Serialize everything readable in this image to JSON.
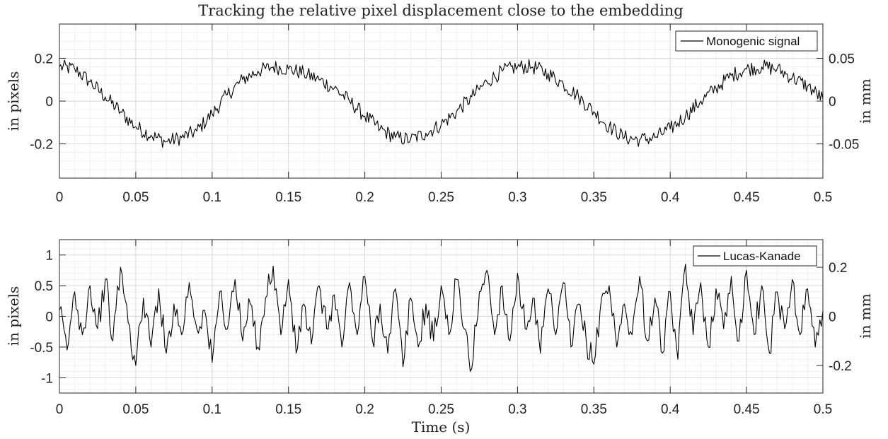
{
  "figure_title": "Tracking the relative pixel displacement close to the embedding",
  "colors": {
    "line": "#000000",
    "grid_major": "#d6d6d6",
    "grid_minor": "#ececec",
    "axes": "#262626"
  },
  "chart_data": [
    {
      "type": "line",
      "title": "Tracking the relative pixel displacement close to the embedding",
      "xlabel": "",
      "ylabel": "in pixels",
      "ylabel_right": "in mm",
      "xlim": [
        0,
        0.5
      ],
      "ylim": [
        -0.36,
        0.36
      ],
      "ylim_right": [
        -0.09,
        0.09
      ],
      "x_ticks": [
        0,
        0.05,
        0.1,
        0.15,
        0.2,
        0.25,
        0.3,
        0.35,
        0.4,
        0.45,
        0.5
      ],
      "x_tick_labels": [
        "0",
        "0.05",
        "0.1",
        "0.15",
        "0.2",
        "0.25",
        "0.3",
        "0.35",
        "0.4",
        "0.45",
        "0.5"
      ],
      "y_ticks": [
        -0.2,
        0,
        0.2
      ],
      "y_tick_labels": [
        "-0.2",
        "0",
        "0.2"
      ],
      "y_right_ticks": [
        -0.05,
        0,
        0.05
      ],
      "y_right_tick_labels": [
        "-0.05",
        "0",
        "0.05"
      ],
      "grid": true,
      "minor_grid": true,
      "legend_position": "top-right",
      "series": [
        {
          "name": "Monogenic signal",
          "sampling": "approx. sinusoid ~6.4 Hz with noise; key points (x, y)",
          "x": [
            0,
            0.01,
            0.02,
            0.03,
            0.04,
            0.05,
            0.06,
            0.07,
            0.08,
            0.09,
            0.1,
            0.11,
            0.12,
            0.13,
            0.14,
            0.15,
            0.16,
            0.17,
            0.18,
            0.19,
            0.2,
            0.21,
            0.22,
            0.23,
            0.24,
            0.25,
            0.26,
            0.27,
            0.28,
            0.29,
            0.3,
            0.31,
            0.32,
            0.33,
            0.34,
            0.35,
            0.36,
            0.37,
            0.38,
            0.39,
            0.4,
            0.41,
            0.42,
            0.43,
            0.44,
            0.45,
            0.46,
            0.47,
            0.48,
            0.49,
            0.5
          ],
          "y": [
            0.16,
            0.15,
            0.09,
            0.02,
            -0.05,
            -0.12,
            -0.16,
            -0.19,
            -0.17,
            -0.14,
            -0.06,
            0.03,
            0.1,
            0.14,
            0.16,
            0.15,
            0.13,
            0.1,
            0.06,
            0.0,
            -0.07,
            -0.13,
            -0.17,
            -0.18,
            -0.15,
            -0.11,
            -0.05,
            0.02,
            0.09,
            0.14,
            0.16,
            0.16,
            0.13,
            0.08,
            0.02,
            -0.05,
            -0.12,
            -0.17,
            -0.18,
            -0.17,
            -0.13,
            -0.07,
            0.0,
            0.06,
            0.12,
            0.15,
            0.16,
            0.15,
            0.11,
            0.07,
            0.01
          ]
        }
      ]
    },
    {
      "type": "line",
      "title": "",
      "xlabel": "Time (s)",
      "ylabel": "in pixels",
      "ylabel_right": "in mm",
      "xlim": [
        0,
        0.5
      ],
      "ylim": [
        -1.25,
        1.25
      ],
      "ylim_right": [
        -0.3125,
        0.3125
      ],
      "x_ticks": [
        0,
        0.05,
        0.1,
        0.15,
        0.2,
        0.25,
        0.3,
        0.35,
        0.4,
        0.45,
        0.5
      ],
      "x_tick_labels": [
        "0",
        "0.05",
        "0.1",
        "0.15",
        "0.2",
        "0.25",
        "0.3",
        "0.35",
        "0.4",
        "0.45",
        "0.5"
      ],
      "y_ticks": [
        -1,
        -0.5,
        0,
        0.5,
        1
      ],
      "y_tick_labels": [
        "-1",
        "-0.5",
        "0",
        "0.5",
        "1"
      ],
      "y_right_ticks": [
        -0.2,
        0,
        0.2
      ],
      "y_right_tick_labels": [
        "-0.2",
        "0",
        "0.2"
      ],
      "grid": true,
      "minor_grid": true,
      "legend_position": "top-right",
      "series": [
        {
          "name": "Lucas-Kanade",
          "sampling": "high-frequency noise around 0, amplitude ~±0.8; representative points (x, y)",
          "x": [
            0,
            0.005,
            0.01,
            0.015,
            0.02,
            0.025,
            0.03,
            0.035,
            0.04,
            0.045,
            0.05,
            0.055,
            0.06,
            0.065,
            0.07,
            0.075,
            0.08,
            0.085,
            0.09,
            0.095,
            0.1,
            0.105,
            0.11,
            0.115,
            0.12,
            0.125,
            0.13,
            0.135,
            0.14,
            0.145,
            0.15,
            0.155,
            0.16,
            0.165,
            0.17,
            0.175,
            0.18,
            0.185,
            0.19,
            0.195,
            0.2,
            0.205,
            0.21,
            0.215,
            0.22,
            0.225,
            0.23,
            0.235,
            0.24,
            0.245,
            0.25,
            0.255,
            0.26,
            0.265,
            0.27,
            0.275,
            0.28,
            0.285,
            0.29,
            0.295,
            0.3,
            0.305,
            0.31,
            0.315,
            0.32,
            0.325,
            0.33,
            0.335,
            0.34,
            0.345,
            0.35,
            0.355,
            0.36,
            0.365,
            0.37,
            0.375,
            0.38,
            0.385,
            0.39,
            0.395,
            0.4,
            0.405,
            0.41,
            0.415,
            0.42,
            0.425,
            0.43,
            0.435,
            0.44,
            0.445,
            0.45,
            0.455,
            0.46,
            0.465,
            0.47,
            0.475,
            0.48,
            0.485,
            0.49,
            0.495,
            0.5
          ],
          "y": [
            0.1,
            -0.55,
            0.4,
            -0.3,
            0.5,
            -0.2,
            0.6,
            -0.4,
            0.8,
            -0.1,
            -0.8,
            0.3,
            -0.5,
            0.45,
            -0.6,
            0.2,
            -0.3,
            0.55,
            -0.2,
            0.1,
            -0.75,
            0.4,
            -0.2,
            0.6,
            -0.4,
            0.2,
            -0.5,
            0.3,
            0.82,
            -0.3,
            0.6,
            -0.6,
            0.2,
            -0.45,
            0.5,
            -0.2,
            0.35,
            -0.5,
            0.55,
            -0.3,
            0.65,
            -0.4,
            0.2,
            -0.6,
            0.45,
            -0.82,
            0.3,
            -0.5,
            0.2,
            -0.4,
            0.5,
            -0.3,
            0.6,
            -0.2,
            -0.85,
            0.4,
            0.75,
            -0.3,
            0.5,
            -0.4,
            0.7,
            -0.2,
            0.3,
            -0.6,
            0.45,
            -0.3,
            0.55,
            -0.5,
            0.2,
            -0.4,
            -0.78,
            0.3,
            0.5,
            -0.5,
            0.2,
            -0.3,
            0.65,
            -0.4,
            0.3,
            -0.6,
            0.4,
            -0.7,
            0.85,
            -0.3,
            0.55,
            -0.5,
            0.45,
            -0.2,
            0.65,
            -0.4,
            0.75,
            -0.3,
            0.5,
            -0.6,
            0.4,
            -0.2,
            0.6,
            -0.3,
            0.45,
            -0.5,
            0.1
          ]
        }
      ]
    }
  ]
}
